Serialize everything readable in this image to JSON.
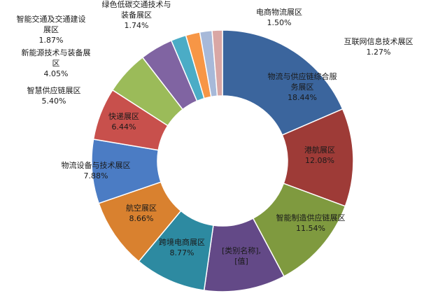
{
  "chart_data": {
    "type": "pie",
    "variant": "doughnut",
    "slices": [
      {
        "label": "物流与供应链综合服务展区",
        "value": 18.44,
        "value_label": "18.44%",
        "color": "#3b659d"
      },
      {
        "label": "港航展区",
        "value": 12.08,
        "value_label": "12.08%",
        "color": "#9e3b37"
      },
      {
        "label": "智能制造供应链展区",
        "value": 11.54,
        "value_label": "11.54%",
        "color": "#7f9a3f"
      },
      {
        "label": "[类别名称],",
        "value": 10.0,
        "value_label": "[值]",
        "color": "#634987"
      },
      {
        "label": "跨境电商展区",
        "value": 8.77,
        "value_label": "8.77%",
        "color": "#2d8aa1"
      },
      {
        "label": "航空展区",
        "value": 8.66,
        "value_label": "8.66%",
        "color": "#d9812f"
      },
      {
        "label": "物流设备与技术展区",
        "value": 7.88,
        "value_label": "7.88%",
        "color": "#4b7cc4"
      },
      {
        "label": "快递展区",
        "value": 6.44,
        "value_label": "6.44%",
        "color": "#c8504c"
      },
      {
        "label": "智慧供应链展区",
        "value": 5.4,
        "value_label": "5.40%",
        "color": "#9bbb59"
      },
      {
        "label": "新能源技术与装备展区",
        "value": 4.05,
        "value_label": "4.05%",
        "color": "#8064a2"
      },
      {
        "label": "智能交通及交通建设展区",
        "value": 1.87,
        "value_label": "1.87%",
        "color": "#4bacc6"
      },
      {
        "label": "绿色低碳交通技术与装备展区",
        "value": 1.74,
        "value_label": "1.74%",
        "color": "#f79646"
      },
      {
        "label": "电商物流展区",
        "value": 1.5,
        "value_label": "1.50%",
        "color": "#a7b9d9"
      },
      {
        "label": "互联网信息技术展区",
        "value": 1.27,
        "value_label": "1.27%",
        "color": "#d9a7a5"
      }
    ]
  }
}
